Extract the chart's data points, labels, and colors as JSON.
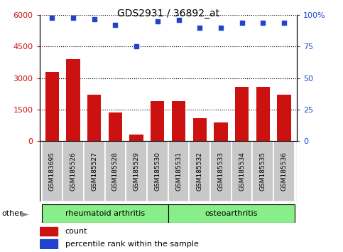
{
  "title": "GDS2931 / 36892_at",
  "samples": [
    "GSM183695",
    "GSM185526",
    "GSM185527",
    "GSM185528",
    "GSM185529",
    "GSM185530",
    "GSM185531",
    "GSM185532",
    "GSM185533",
    "GSM185534",
    "GSM185535",
    "GSM185536"
  ],
  "counts": [
    3300,
    3900,
    2200,
    1350,
    300,
    1900,
    1900,
    1100,
    900,
    2600,
    2600,
    2200
  ],
  "percentile_ranks": [
    98,
    98,
    97,
    92,
    75,
    95,
    96,
    90,
    90,
    94,
    94,
    94
  ],
  "group_labels": [
    "rheumatoid arthritis",
    "osteoarthritis"
  ],
  "group_ranges": [
    [
      0,
      6
    ],
    [
      6,
      12
    ]
  ],
  "bar_color": "#cc1111",
  "dot_color": "#2244cc",
  "background_color": "#ffffff",
  "tick_bg_color": "#c8c8c8",
  "group_color": "#88ee88",
  "ylim_left": [
    0,
    6000
  ],
  "ylim_right": [
    0,
    100
  ],
  "yticks_left": [
    0,
    1500,
    3000,
    4500,
    6000
  ],
  "ytick_labels_left": [
    "0",
    "1500",
    "3000",
    "4500",
    "6000"
  ],
  "yticks_right": [
    0,
    25,
    50,
    75,
    100
  ],
  "ytick_labels_right": [
    "0",
    "25",
    "50",
    "75",
    "100%"
  ],
  "legend_items": [
    {
      "label": "count",
      "color": "#cc1111"
    },
    {
      "label": "percentile rank within the sample",
      "color": "#2244cc"
    }
  ],
  "other_label": "other"
}
